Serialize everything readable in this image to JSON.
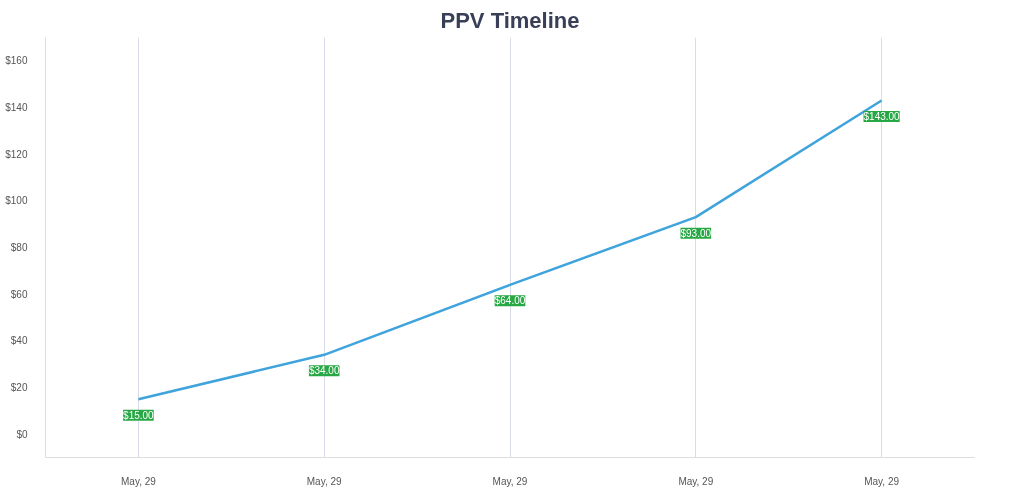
{
  "chart_data": {
    "type": "line",
    "title": "PPV Timeline",
    "categories": [
      "May, 29",
      "May, 29",
      "May, 29",
      "May, 29",
      "May, 29"
    ],
    "series": [
      {
        "color": "#3fa3dc",
        "values": [
          15,
          34,
          64,
          93,
          143
        ],
        "value_labels": [
          "$15.00",
          "$34.00",
          "$64.00",
          "$93.00",
          "$143.00"
        ]
      }
    ],
    "ylim": [
      -10,
      170
    ],
    "yticks": [
      {
        "value": 0,
        "label": "$0"
      },
      {
        "value": 20,
        "label": "$20"
      },
      {
        "value": 40,
        "label": "$40"
      },
      {
        "value": 60,
        "label": "$60"
      },
      {
        "value": 80,
        "label": "$80"
      },
      {
        "value": 100,
        "label": "$100"
      },
      {
        "value": 120,
        "label": "$120"
      },
      {
        "value": 140,
        "label": "$140"
      },
      {
        "value": 160,
        "label": "$160"
      }
    ],
    "grid": "x",
    "marker": "none",
    "line_style": "solid"
  }
}
